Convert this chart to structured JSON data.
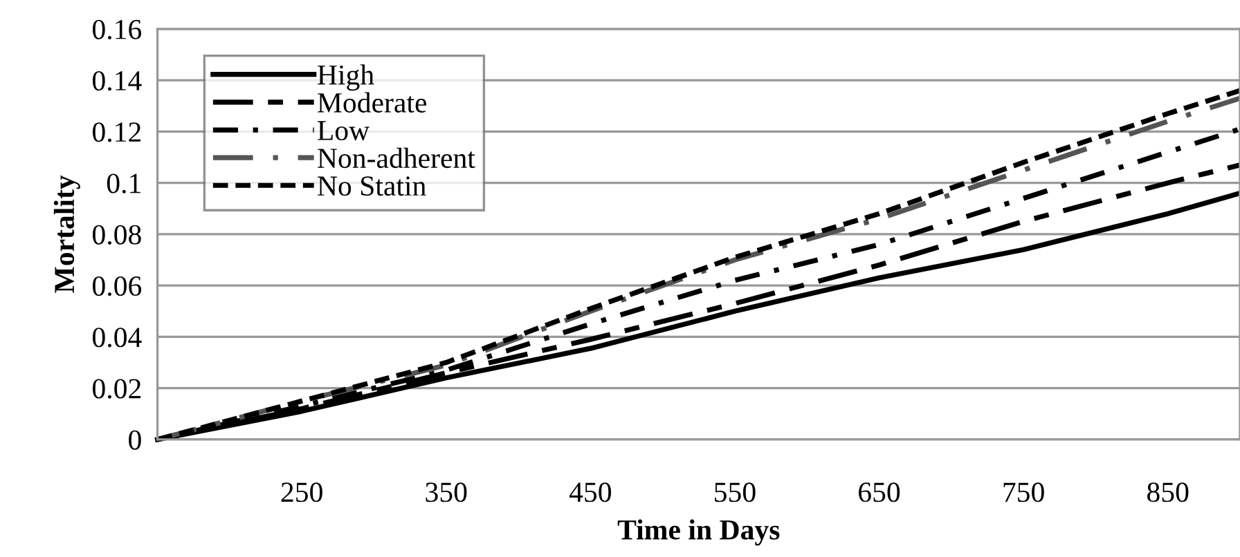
{
  "chart_data": {
    "type": "line",
    "xlabel": "Time in Days",
    "ylabel": "Mortality",
    "x": [
      150,
      250,
      350,
      450,
      550,
      650,
      750,
      850,
      900
    ],
    "xlim": [
      150,
      900
    ],
    "xticks": [
      250,
      350,
      450,
      550,
      650,
      750,
      850
    ],
    "ylim": [
      0,
      0.16
    ],
    "yticks": [
      0,
      0.02,
      0.04,
      0.06,
      0.08,
      0.1,
      0.12,
      0.14,
      0.16
    ],
    "grid": "y",
    "legend": "top left",
    "marker": "none",
    "series": [
      {
        "name": "High",
        "color": "#000000",
        "line_style": "solid",
        "values": [
          0,
          0.011,
          0.024,
          0.0355,
          0.05,
          0.063,
          0.074,
          0.088,
          0.096
        ]
      },
      {
        "name": "Moderate",
        "color": "#000000",
        "line_style": "long dash",
        "values": [
          0,
          0.012,
          0.026,
          0.039,
          0.053,
          0.068,
          0.085,
          0.1,
          0.107
        ]
      },
      {
        "name": "Low",
        "color": "#000000",
        "line_style": "dash dot",
        "values": [
          0,
          0.013,
          0.027,
          0.045,
          0.062,
          0.076,
          0.094,
          0.112,
          0.121
        ]
      },
      {
        "name": "Non-adherent",
        "color": "#555555",
        "line_style": "long dash dot",
        "values": [
          0,
          0.015,
          0.029,
          0.05,
          0.07,
          0.086,
          0.105,
          0.124,
          0.133
        ]
      },
      {
        "name": "No Statin",
        "color": "#000000",
        "line_style": "short dash",
        "values": [
          0,
          0.015,
          0.03,
          0.051,
          0.071,
          0.088,
          0.108,
          0.127,
          0.136
        ]
      }
    ]
  }
}
